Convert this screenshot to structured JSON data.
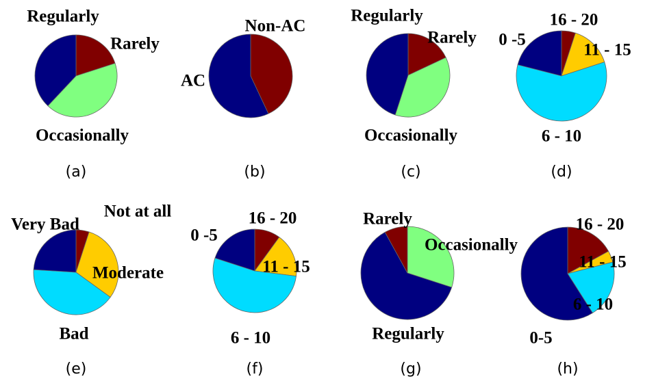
{
  "palette": {
    "dark_red": "#800000",
    "navy": "#000080",
    "light_green": "#80ff80",
    "cyan": "#00dcff",
    "gold": "#ffcc00",
    "edge": "#666666"
  },
  "chart_data": [
    {
      "type": "pie",
      "caption": "(a)",
      "slices": [
        {
          "label": "Rarely",
          "value": 20,
          "color": "dark_red"
        },
        {
          "label": "Occasionally",
          "value": 42,
          "color": "light_green"
        },
        {
          "label": "Regularly",
          "value": 38,
          "color": "navy"
        }
      ]
    },
    {
      "type": "pie",
      "caption": "(b)",
      "slices": [
        {
          "label": "Non-AC",
          "value": 43,
          "color": "dark_red"
        },
        {
          "label": "AC",
          "value": 57,
          "color": "navy"
        }
      ]
    },
    {
      "type": "pie",
      "caption": "(c)",
      "slices": [
        {
          "label": "Rarely",
          "value": 18,
          "color": "dark_red"
        },
        {
          "label": "Occasionally",
          "value": 37,
          "color": "light_green"
        },
        {
          "label": "Regularly",
          "value": 45,
          "color": "navy"
        }
      ]
    },
    {
      "type": "pie",
      "caption": "(d)",
      "slices": [
        {
          "label": "16 - 20",
          "value": 5,
          "color": "dark_red"
        },
        {
          "label": "11 - 15",
          "value": 15,
          "color": "gold"
        },
        {
          "label": "6 - 10",
          "value": 59,
          "color": "cyan"
        },
        {
          "label": "0 -5",
          "value": 21,
          "color": "navy"
        }
      ]
    },
    {
      "type": "pie",
      "caption": "(e)",
      "slices": [
        {
          "label": "Not at all",
          "value": 5,
          "color": "dark_red"
        },
        {
          "label": "Moderate",
          "value": 30,
          "color": "gold"
        },
        {
          "label": "Bad",
          "value": 41,
          "color": "cyan"
        },
        {
          "label": "Very Bad",
          "value": 24,
          "color": "navy"
        }
      ]
    },
    {
      "type": "pie",
      "caption": "(f)",
      "slices": [
        {
          "label": "16 - 20",
          "value": 10,
          "color": "dark_red"
        },
        {
          "label": "11 - 15",
          "value": 17,
          "color": "gold"
        },
        {
          "label": "6 - 10",
          "value": 53,
          "color": "cyan"
        },
        {
          "label": "0 -5",
          "value": 20,
          "color": "navy"
        }
      ]
    },
    {
      "type": "pie",
      "caption": "(g)",
      "slices": [
        {
          "label": "Occasionally",
          "value": 30,
          "color": "light_green"
        },
        {
          "label": "Regularly",
          "value": 62,
          "color": "navy"
        },
        {
          "label": "Rarely",
          "value": 8,
          "color": "dark_red"
        }
      ]
    },
    {
      "type": "pie",
      "caption": "(h)",
      "slices": [
        {
          "label": "16 - 20",
          "value": 17,
          "color": "dark_red"
        },
        {
          "label": "11 - 15",
          "value": 4,
          "color": "gold"
        },
        {
          "label": "6 - 10",
          "value": 20,
          "color": "cyan"
        },
        {
          "label": "0-5",
          "value": 59,
          "color": "navy"
        }
      ]
    }
  ]
}
